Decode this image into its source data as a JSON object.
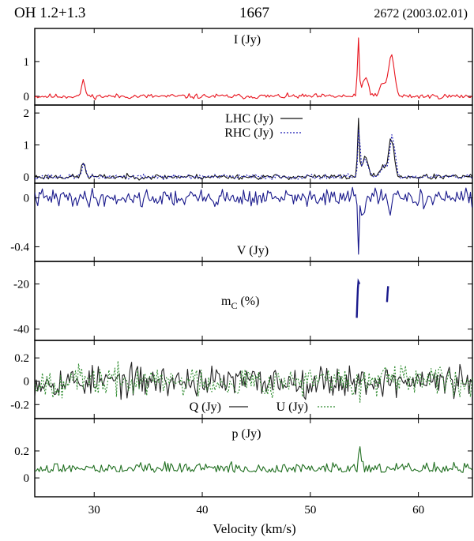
{
  "header": {
    "source": "OH 1.2+1.3",
    "frequency": "1667",
    "observation": "2672 (2003.02.01)"
  },
  "colors": {
    "I": "#e8141e",
    "LHC": "#111111",
    "RHC": "#1a1ab4",
    "V": "#1a1a8c",
    "mC": "#1a1a8c",
    "Q": "#222222",
    "U": "#2e8b2e",
    "p": "#1f6e1f"
  },
  "chart_data": {
    "type": "line",
    "xlabel": "Velocity (km/s)",
    "xlim": [
      24.5,
      65
    ],
    "xticks": [
      30,
      40,
      50,
      60
    ],
    "panels": [
      {
        "id": "I",
        "label": "I (Jy)",
        "ylim": [
          -0.25,
          1.95
        ],
        "yticks": [
          {
            "v": 0,
            "t": "0"
          },
          {
            "v": 1,
            "t": "1"
          }
        ],
        "series": [
          {
            "key": "I",
            "style": "solid",
            "noise": 0.035,
            "seed": 11,
            "peaks": [
              [
                29.0,
                0.42,
                0.35
              ],
              [
                54.45,
                1.65,
                0.17
              ],
              [
                55.1,
                0.55,
                0.55
              ],
              [
                57.5,
                1.2,
                0.55
              ],
              [
                56.7,
                0.35,
                0.5
              ]
            ]
          }
        ]
      },
      {
        "id": "LR",
        "label": null,
        "ylim": [
          -0.2,
          2.25
        ],
        "yticks": [
          {
            "v": 0,
            "t": "0"
          },
          {
            "v": 1,
            "t": "1"
          },
          {
            "v": 2,
            "t": "2"
          }
        ],
        "series": [
          {
            "key": "LHC",
            "name": "LHC (Jy)",
            "style": "solid",
            "noise": 0.04,
            "seed": 23,
            "peaks": [
              [
                29.0,
                0.45,
                0.35
              ],
              [
                54.45,
                1.85,
                0.17
              ],
              [
                55.1,
                0.6,
                0.55
              ],
              [
                57.5,
                1.2,
                0.5
              ],
              [
                56.7,
                0.35,
                0.5
              ]
            ]
          },
          {
            "key": "RHC",
            "name": "RHC (Jy)",
            "style": "dotted",
            "noise": 0.04,
            "seed": 37,
            "peaks": [
              [
                29.0,
                0.38,
                0.35
              ],
              [
                54.5,
                1.55,
                0.18
              ],
              [
                55.1,
                0.55,
                0.55
              ],
              [
                57.6,
                1.25,
                0.5
              ],
              [
                56.8,
                0.3,
                0.5
              ]
            ]
          }
        ]
      },
      {
        "id": "V",
        "label": "V (Jy)",
        "ylim": [
          -0.52,
          0.12
        ],
        "yticks": [
          {
            "v": 0,
            "t": "0"
          },
          {
            "v": -0.4,
            "t": "-0.4"
          }
        ],
        "series": [
          {
            "key": "V",
            "style": "solid",
            "noise": 0.035,
            "seed": 41,
            "peaks": [
              [
                54.45,
                -0.47,
                0.14
              ],
              [
                54.9,
                -0.12,
                0.3
              ],
              [
                57.4,
                -0.1,
                0.35
              ]
            ]
          }
        ]
      },
      {
        "id": "mC",
        "label": "mC (%)",
        "ylim": [
          -45,
          -10
        ],
        "yticks": [
          {
            "v": -20,
            "t": "-20"
          },
          {
            "v": -40,
            "t": "-40"
          }
        ],
        "segments": [
          {
            "key": "mC",
            "points": [
              [
                54.3,
                -35
              ],
              [
                54.35,
                -28
              ],
              [
                54.4,
                -22
              ],
              [
                54.45,
                -19
              ],
              [
                54.55,
                -20
              ]
            ]
          },
          {
            "key": "mC",
            "points": [
              [
                57.1,
                -28
              ],
              [
                57.15,
                -24
              ],
              [
                57.2,
                -21
              ]
            ]
          }
        ]
      },
      {
        "id": "QU",
        "label": null,
        "ylim": [
          -0.32,
          0.35
        ],
        "yticks": [
          {
            "v": 0.2,
            "t": "0.2"
          },
          {
            "v": 0,
            "t": "0"
          },
          {
            "v": -0.2,
            "t": "-0.2"
          }
        ],
        "series": [
          {
            "key": "Q",
            "name": "Q (Jy)",
            "style": "solid",
            "noise": 0.065,
            "seed": 53,
            "peaks": []
          },
          {
            "key": "U",
            "name": "U (Jy)",
            "style": "dotted",
            "noise": 0.065,
            "seed": 67,
            "peaks": [
              [
                54.6,
                -0.18,
                0.15
              ]
            ]
          }
        ]
      },
      {
        "id": "p",
        "label": "p (Jy)",
        "ylim": [
          -0.14,
          0.44
        ],
        "yticks": [
          {
            "v": 0.2,
            "t": "0.2"
          },
          {
            "v": 0,
            "t": "0"
          }
        ],
        "series": [
          {
            "key": "p",
            "style": "solid",
            "noise": 0.04,
            "seed": 79,
            "base": 0.04,
            "peaks": [
              [
                54.55,
                0.17,
                0.15
              ]
            ]
          }
        ]
      }
    ]
  }
}
